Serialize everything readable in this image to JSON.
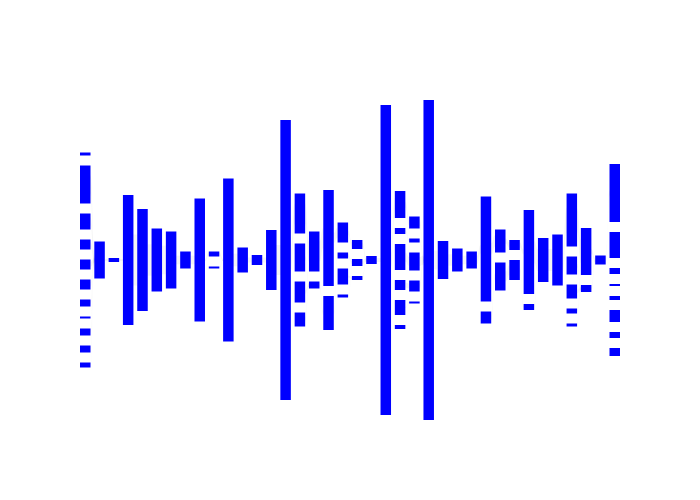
{
  "chart_data": {
    "type": "sankey",
    "node_color": "#0000ff",
    "link_color": "#c8c8c8",
    "columns": [
      {
        "nodes": [
          {
            "value": 3
          },
          {
            "value": 38
          },
          {
            "value": 16
          },
          {
            "value": 10
          },
          {
            "value": 10
          },
          {
            "value": 10
          },
          {
            "value": 7
          },
          {
            "value": 2
          },
          {
            "value": 7
          },
          {
            "value": 7
          },
          {
            "value": 5
          }
        ]
      },
      {
        "nodes": [
          {
            "value": 37
          }
        ]
      },
      {
        "nodes": [
          {
            "value": 4
          }
        ]
      },
      {
        "nodes": [
          {
            "value": 130
          }
        ]
      },
      {
        "nodes": [
          {
            "value": 102
          }
        ]
      },
      {
        "nodes": [
          {
            "value": 63
          }
        ]
      },
      {
        "nodes": [
          {
            "value": 57
          }
        ]
      },
      {
        "nodes": [
          {
            "value": 17
          }
        ]
      },
      {
        "nodes": [
          {
            "value": 123
          }
        ]
      },
      {
        "nodes": [
          {
            "value": 5
          },
          {
            "value": 2
          }
        ]
      },
      {
        "nodes": [
          {
            "value": 163
          }
        ]
      },
      {
        "nodes": [
          {
            "value": 25
          }
        ]
      },
      {
        "nodes": [
          {
            "value": 10
          }
        ]
      },
      {
        "nodes": [
          {
            "value": 60
          }
        ]
      },
      {
        "nodes": [
          {
            "value": 280
          }
        ]
      },
      {
        "nodes": [
          {
            "value": 40
          },
          {
            "value": 28
          },
          {
            "value": 21
          },
          {
            "value": 14
          }
        ]
      },
      {
        "nodes": [
          {
            "value": 40
          },
          {
            "value": 7
          }
        ]
      },
      {
        "nodes": [
          {
            "value": 96
          },
          {
            "value": 34
          }
        ]
      },
      {
        "nodes": [
          {
            "value": 20
          },
          {
            "value": 6
          },
          {
            "value": 16
          },
          {
            "value": 3
          }
        ]
      },
      {
        "nodes": [
          {
            "value": 9
          },
          {
            "value": 7
          },
          {
            "value": 4
          }
        ]
      },
      {
        "nodes": [
          {
            "value": 8
          }
        ]
      },
      {
        "nodes": [
          {
            "value": 310
          }
        ]
      },
      {
        "nodes": [
          {
            "value": 27
          },
          {
            "value": 6
          },
          {
            "value": 26
          },
          {
            "value": 10
          },
          {
            "value": 15
          },
          {
            "value": 4
          }
        ]
      },
      {
        "nodes": [
          {
            "value": 12
          },
          {
            "value": 4
          },
          {
            "value": 18
          },
          {
            "value": 11
          },
          {
            "value": 2
          }
        ]
      },
      {
        "nodes": [
          {
            "value": 320
          }
        ]
      },
      {
        "nodes": [
          {
            "value": 38
          }
        ]
      },
      {
        "nodes": [
          {
            "value": 23
          }
        ]
      },
      {
        "nodes": [
          {
            "value": 17
          }
        ]
      },
      {
        "nodes": [
          {
            "value": 105
          },
          {
            "value": 12
          }
        ]
      },
      {
        "nodes": [
          {
            "value": 23
          },
          {
            "value": 28
          }
        ]
      },
      {
        "nodes": [
          {
            "value": 10
          },
          {
            "value": 20
          }
        ]
      },
      {
        "nodes": [
          {
            "value": 84
          },
          {
            "value": 6
          }
        ]
      },
      {
        "nodes": [
          {
            "value": 44
          }
        ]
      },
      {
        "nodes": [
          {
            "value": 51
          }
        ]
      },
      {
        "nodes": [
          {
            "value": 53
          },
          {
            "value": 18
          },
          {
            "value": 14
          },
          {
            "value": 5
          },
          {
            "value": 3
          }
        ]
      },
      {
        "nodes": [
          {
            "value": 47
          },
          {
            "value": 7
          }
        ]
      },
      {
        "nodes": [
          {
            "value": 9
          }
        ]
      },
      {
        "nodes": [
          {
            "value": 58
          },
          {
            "value": 26
          },
          {
            "value": 6
          },
          {
            "value": 2
          },
          {
            "value": 4
          },
          {
            "value": 12
          },
          {
            "value": 6
          },
          {
            "value": 8
          }
        ]
      }
    ]
  }
}
